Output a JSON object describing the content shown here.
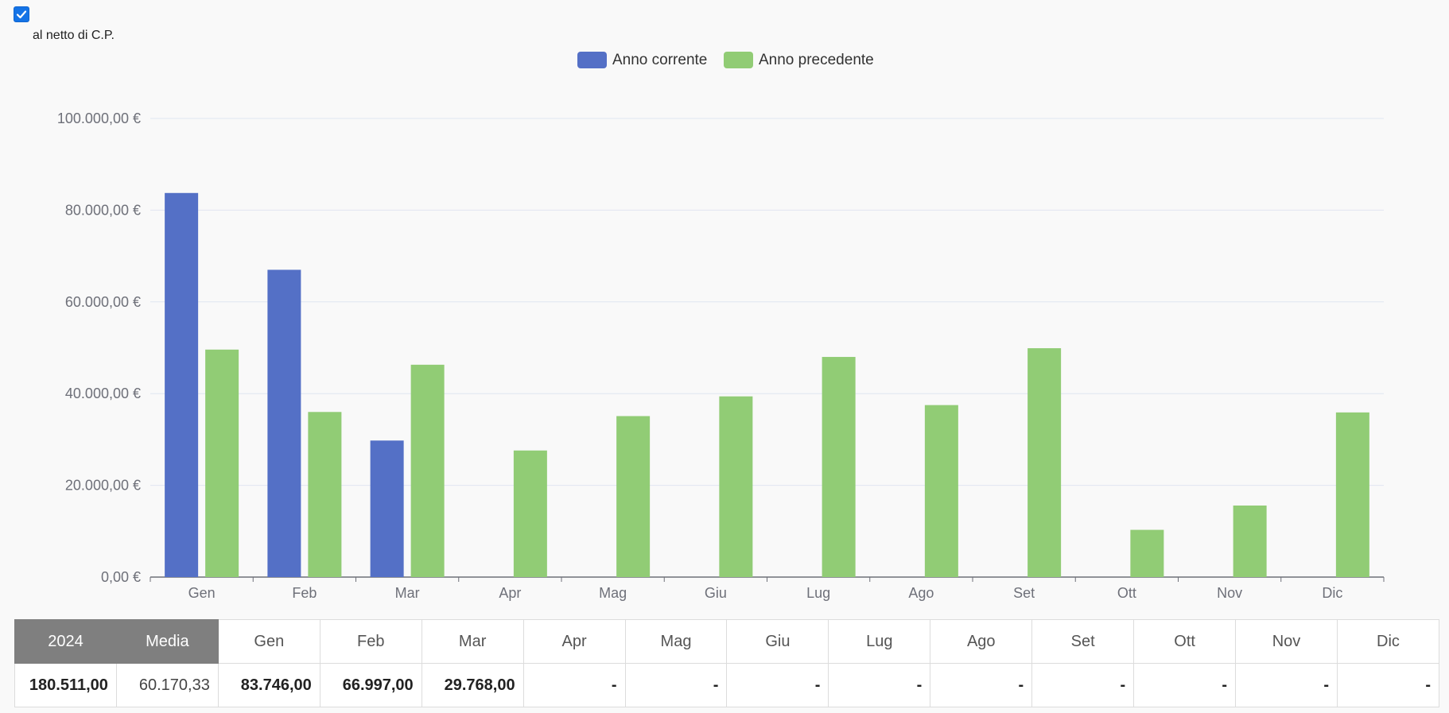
{
  "filter": {
    "checkbox_checked": true,
    "label": "al netto di C.P."
  },
  "chart_data": {
    "type": "bar",
    "categories": [
      "Gen",
      "Feb",
      "Mar",
      "Apr",
      "Mag",
      "Giu",
      "Lug",
      "Ago",
      "Set",
      "Ott",
      "Nov",
      "Dic"
    ],
    "series": [
      {
        "name": "Anno corrente",
        "color": "#5470c6",
        "values": [
          83746,
          66997,
          29768,
          null,
          null,
          null,
          null,
          null,
          null,
          null,
          null,
          null
        ]
      },
      {
        "name": "Anno precedente",
        "color": "#91cc75",
        "values": [
          49600,
          36000,
          46300,
          27600,
          35100,
          39400,
          48000,
          37500,
          49900,
          10300,
          15600,
          35900
        ]
      }
    ],
    "ylim": [
      0,
      100000
    ],
    "yticks": [
      0,
      20000,
      40000,
      60000,
      80000,
      100000
    ],
    "ytick_labels": [
      "0,00 €",
      "20.000,00 €",
      "40.000,00 €",
      "60.000,00 €",
      "80.000,00 €",
      "100.000,00 €"
    ],
    "grid": true,
    "legend_position": "top-center",
    "xlabel": "",
    "ylabel": ""
  },
  "summary_table": {
    "headers": [
      "2024",
      "Media",
      "Gen",
      "Feb",
      "Mar",
      "Apr",
      "Mag",
      "Giu",
      "Lug",
      "Ago",
      "Set",
      "Ott",
      "Nov",
      "Dic"
    ],
    "values": [
      "180.511,00",
      "60.170,33",
      "83.746,00",
      "66.997,00",
      "29.768,00",
      "-",
      "-",
      "-",
      "-",
      "-",
      "-",
      "-",
      "-",
      "-"
    ]
  }
}
